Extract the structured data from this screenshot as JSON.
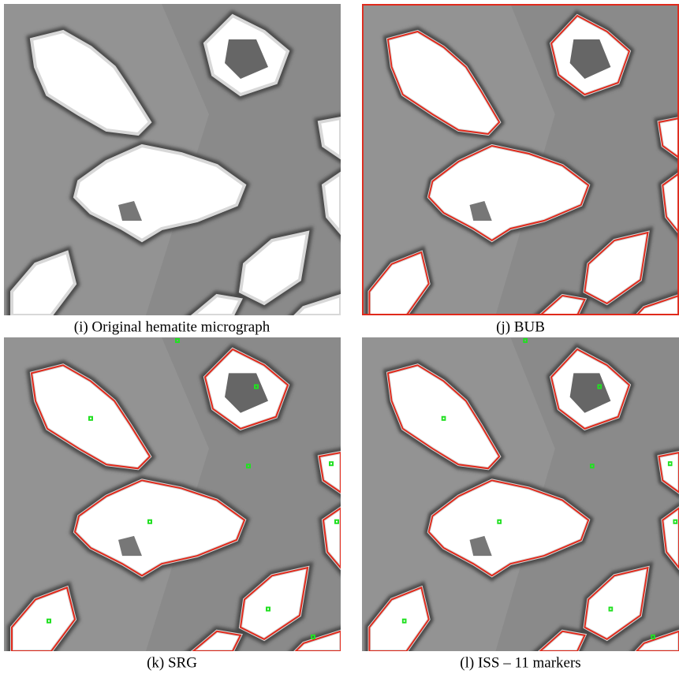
{
  "panels": [
    {
      "caption": "(i) Original hematite micrograph"
    },
    {
      "caption": "(j) BUB"
    },
    {
      "caption": "(k) SRG"
    },
    {
      "caption": "(l) ISS – 11 markers"
    }
  ]
}
